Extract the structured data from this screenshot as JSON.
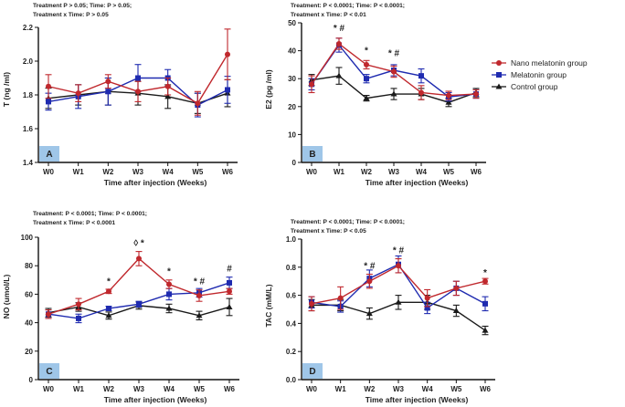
{
  "legend": [
    {
      "name": "Nano melatonin group",
      "color": "#c0282d",
      "marker": "circle"
    },
    {
      "name": "Melatonin group",
      "color": "#1f2bb0",
      "marker": "square"
    },
    {
      "name": "Control group",
      "color": "#1a1a1a",
      "marker": "triangle"
    }
  ],
  "chart_data": [
    {
      "type": "line",
      "panel": "A",
      "stats": [
        "Treatment P > 0.05; Time: P > 0.05;",
        "Treatment x Time: P > 0.05"
      ],
      "xlabel": "Time after injection (Weeks)",
      "ylabel": "T (ng /ml)",
      "categories": [
        "W0",
        "W1",
        "W2",
        "W3",
        "W4",
        "W5",
        "W6"
      ],
      "ylim": [
        1.4,
        2.2
      ],
      "yticks": [
        "1.4",
        "1.6",
        "1.8",
        "2.0",
        "2.2"
      ],
      "series": [
        {
          "name": "Nano melatonin group",
          "values": [
            1.85,
            1.81,
            1.88,
            1.82,
            1.85,
            1.75,
            2.04
          ],
          "errors": [
            0.07,
            0.05,
            0.04,
            0.06,
            0.05,
            0.07,
            0.15
          ]
        },
        {
          "name": "Melatonin group",
          "values": [
            1.76,
            1.79,
            1.82,
            1.9,
            1.9,
            1.74,
            1.83
          ],
          "errors": [
            0.05,
            0.07,
            0.08,
            0.08,
            0.05,
            0.07,
            0.08
          ]
        },
        {
          "name": "Control group",
          "values": [
            1.78,
            1.8,
            1.82,
            1.81,
            1.79,
            1.75,
            1.81
          ],
          "errors": [
            0.06,
            0.06,
            0.08,
            0.07,
            0.07,
            0.06,
            0.08
          ]
        }
      ],
      "annotations": []
    },
    {
      "type": "line",
      "panel": "B",
      "stats": [
        "Treatment: P < 0.0001; Time: P < 0.0001;",
        "Treatment x Time: P < 0.01"
      ],
      "xlabel": "Time after injection (Weeks)",
      "ylabel": "E2 (pg /ml)",
      "categories": [
        "W0",
        "W1",
        "W2",
        "W3",
        "W4",
        "W5",
        "W6"
      ],
      "ylim": [
        0,
        50
      ],
      "yticks": [
        "0",
        "10",
        "20",
        "30",
        "40",
        "50"
      ],
      "series": [
        {
          "name": "Nano melatonin group",
          "values": [
            28,
            42.5,
            35,
            32.5,
            25,
            24,
            24.5
          ],
          "errors": [
            3,
            2,
            1.5,
            2,
            2.5,
            1.5,
            1.5
          ]
        },
        {
          "name": "Melatonin group",
          "values": [
            28,
            42,
            30,
            33,
            31,
            23.5,
            24.5
          ],
          "errors": [
            2,
            2.5,
            1.5,
            2,
            2.5,
            1.5,
            1.5
          ]
        },
        {
          "name": "Control group",
          "values": [
            29.5,
            31,
            23,
            24.5,
            24.5,
            21.5,
            25
          ],
          "errors": [
            2,
            3,
            1,
            2,
            2,
            1.5,
            1.5
          ]
        }
      ],
      "annotations": [
        {
          "category": "W1",
          "text": "* #",
          "y": 47
        },
        {
          "category": "W2",
          "text": "*",
          "y": 39
        },
        {
          "category": "W3",
          "text": "* #",
          "y": 38
        }
      ]
    },
    {
      "type": "line",
      "panel": "C",
      "stats": [
        "Treatment: P < 0.0001; Time: P < 0.0001;",
        "Treatment x Time: P < 0.0001"
      ],
      "xlabel": "Time after injection (Weeks)",
      "ylabel": "NO (umol/L)",
      "categories": [
        "W0",
        "W1",
        "W2",
        "W3",
        "W4",
        "W5",
        "W6"
      ],
      "ylim": [
        0,
        100
      ],
      "yticks": [
        "0",
        "20",
        "40",
        "60",
        "80",
        "100"
      ],
      "series": [
        {
          "name": "Nano melatonin group",
          "values": [
            46,
            53,
            62,
            85,
            67,
            59,
            62
          ],
          "errors": [
            3,
            4,
            1.5,
            5,
            3,
            4,
            2
          ]
        },
        {
          "name": "Melatonin group",
          "values": [
            46,
            43,
            50,
            53,
            60,
            61,
            68
          ],
          "errors": [
            3,
            3,
            1.5,
            2,
            4,
            3,
            4
          ]
        },
        {
          "name": "Control group",
          "values": [
            47,
            51,
            45,
            52,
            50,
            45,
            51
          ],
          "errors": [
            3,
            3,
            2.5,
            2.5,
            3,
            3,
            6
          ]
        }
      ],
      "annotations": [
        {
          "category": "W2",
          "text": "*",
          "y": 67
        },
        {
          "category": "W3",
          "text": "◊ *",
          "y": 94
        },
        {
          "category": "W4",
          "text": "*",
          "y": 74
        },
        {
          "category": "W5",
          "text": "* #",
          "y": 67
        },
        {
          "category": "W6",
          "text": "#",
          "y": 76
        }
      ]
    },
    {
      "type": "line",
      "panel": "D",
      "stats": [
        "Treatment: P < 0.0001; Time: P < 0.0001;",
        "Treatment x Time: P < 0.05"
      ],
      "xlabel": "Time after injection (Weeks)",
      "ylabel": "TAC (mM/L)",
      "categories": [
        "W0",
        "W1",
        "W2",
        "W3",
        "W4",
        "W5",
        "W6"
      ],
      "ylim": [
        0.0,
        1.0
      ],
      "yticks": [
        "0.0",
        "0.2",
        "0.4",
        "0.6",
        "0.8",
        "1.0"
      ],
      "series": [
        {
          "name": "Nano melatonin group",
          "values": [
            0.54,
            0.58,
            0.7,
            0.81,
            0.58,
            0.65,
            0.7
          ],
          "errors": [
            0.05,
            0.08,
            0.05,
            0.05,
            0.06,
            0.05,
            0.02
          ]
        },
        {
          "name": "Melatonin group",
          "values": [
            0.55,
            0.52,
            0.72,
            0.82,
            0.51,
            0.65,
            0.54
          ],
          "errors": [
            0.04,
            0.04,
            0.06,
            0.06,
            0.04,
            0.05,
            0.05
          ]
        },
        {
          "name": "Control group",
          "values": [
            0.53,
            0.53,
            0.47,
            0.55,
            0.55,
            0.49,
            0.35
          ],
          "errors": [
            0.04,
            0.04,
            0.04,
            0.05,
            0.05,
            0.04,
            0.03
          ]
        }
      ],
      "annotations": [
        {
          "category": "W2",
          "text": "* #",
          "y": 0.79
        },
        {
          "category": "W3",
          "text": "* #",
          "y": 0.9
        },
        {
          "category": "W6",
          "text": "*",
          "y": 0.74
        }
      ]
    }
  ]
}
